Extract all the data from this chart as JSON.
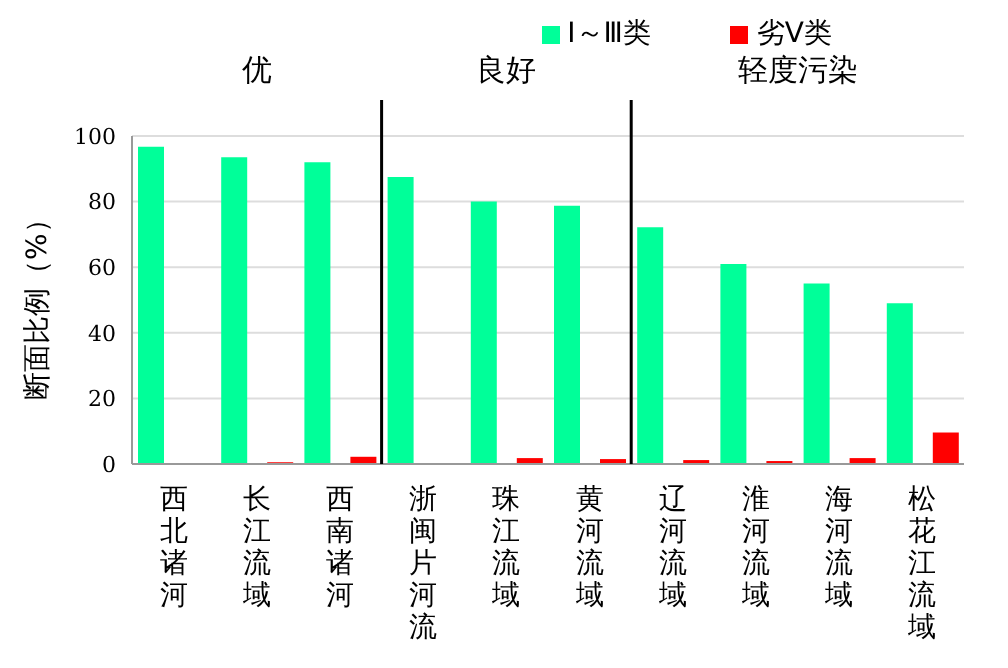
{
  "chart_data": {
    "type": "bar",
    "ylabel": "断面比例（%）",
    "categories": [
      "西北诸河",
      "长江流域",
      "西南诸河",
      "浙闽片河流",
      "珠江流域",
      "黄河流域",
      "辽河流域",
      "淮河流域",
      "海河流域",
      "松花江流域"
    ],
    "series": [
      {
        "name": "Ⅰ～Ⅲ类",
        "color": "#00ff99",
        "values": [
          96.7,
          93.5,
          92.0,
          87.5,
          80.0,
          78.7,
          72.2,
          61.0,
          55.0,
          49.0
        ]
      },
      {
        "name": "劣Ⅴ类",
        "color": "#ff0000",
        "values": [
          0,
          0.5,
          2.2,
          0,
          1.8,
          1.5,
          1.2,
          0.9,
          1.8,
          9.6
        ]
      }
    ],
    "annotations": [
      "优",
      "良好",
      "轻度污染"
    ],
    "ylim": [
      0,
      100
    ],
    "yticks": [
      0,
      20,
      40,
      60,
      80,
      100
    ],
    "grid": "y",
    "legend": "top right"
  }
}
